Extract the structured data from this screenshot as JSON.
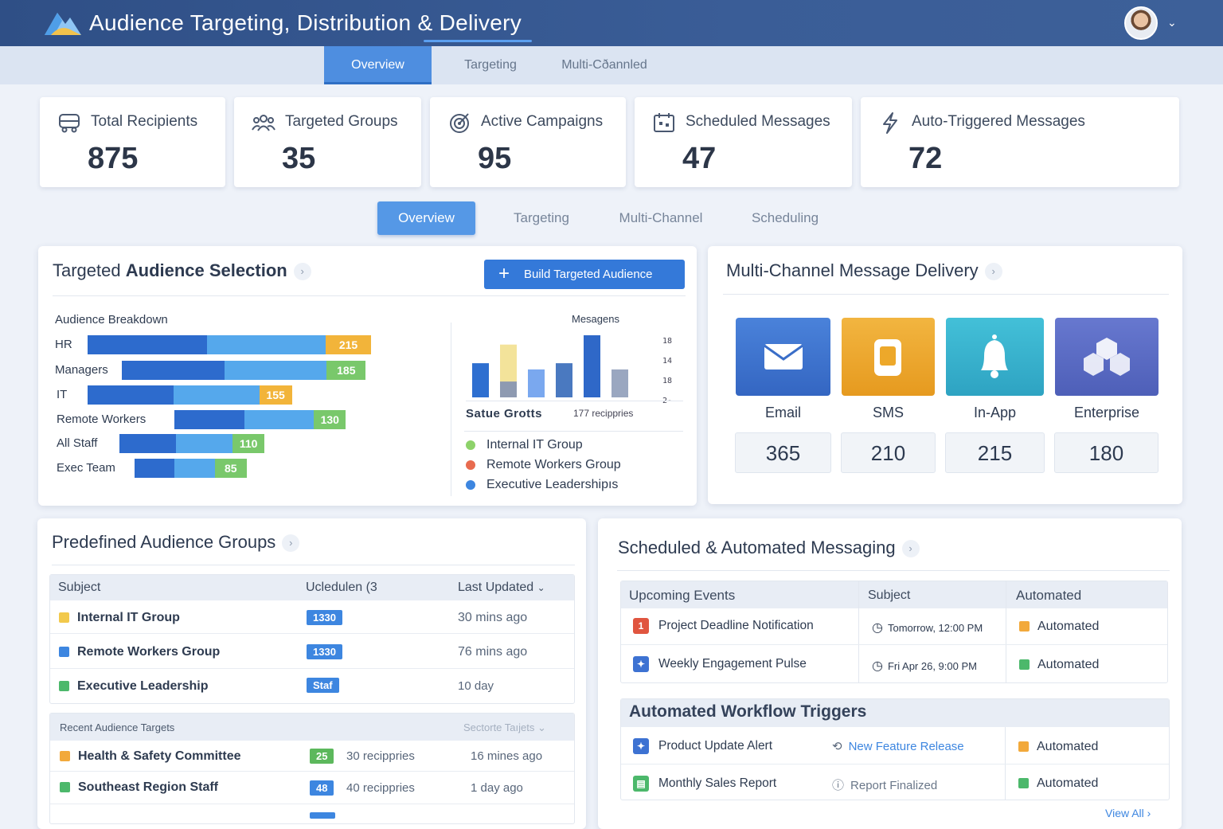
{
  "header": {
    "title": "Audience Targeting, Distribution & Delivery"
  },
  "top_tabs": [
    "Overview",
    "Targeting",
    "Multi-Cðannled"
  ],
  "kpis": [
    {
      "label": "Total Recipients",
      "value": "875",
      "icon": "bus-icon"
    },
    {
      "label": "Targeted Groups",
      "value": "35",
      "icon": "users-icon"
    },
    {
      "label": "Active Campaigns",
      "value": "95",
      "icon": "target-icon"
    },
    {
      "label": "Scheduled Messages",
      "value": "47",
      "icon": "calendar-icon"
    },
    {
      "label": "Auto-Triggered Messages",
      "value": "72",
      "icon": "bolt-icon"
    }
  ],
  "sub_tabs": [
    "Overview",
    "Targeting",
    "Multi-Channel",
    "Scheduling"
  ],
  "targeted": {
    "title_a": "Targeted",
    "title_b": "Audience Selection",
    "build_button": "Build Targeted Audience",
    "breakdown_label": "Audience Breakdown",
    "chart_title": "Mesagens",
    "chart_right_ticks": [
      "18",
      "14",
      "18",
      "2-"
    ],
    "chart_footer_left": "Satue Grotts",
    "chart_footer_right": "177 recippries",
    "legend": [
      {
        "label": "Internal IT Group",
        "color": "#8dd26a"
      },
      {
        "label": "Remote Workers Group",
        "color": "#e86b4f"
      },
      {
        "label": "Executive Leadershipıs",
        "color": "#3d86e0"
      }
    ]
  },
  "chart_data": [
    {
      "type": "bar",
      "title": "Audience Breakdown",
      "categories": [
        "HR",
        "Managers",
        "IT",
        "Remote Workers",
        "All Staff",
        "Exec Team"
      ],
      "values": [
        215,
        185,
        155,
        130,
        110,
        85
      ],
      "tag_colors": [
        "#f2b43a",
        "#79c86b",
        "#f2b43a",
        "#79c86b",
        "#79c86b",
        "#79c86b"
      ]
    },
    {
      "type": "bar",
      "title": "Mesagens",
      "values": [
        0.55,
        0.85,
        0.45,
        0.55,
        1.0,
        0.45
      ],
      "series_colors": [
        "#2e6fd0",
        "#f3e39a",
        "#7aa8ef",
        "#4a79c0",
        "#2f68c8",
        "#9aa7c0"
      ]
    }
  ],
  "delivery": {
    "title": "Multi-Channel Message Delivery",
    "channels": [
      {
        "name": "Email",
        "value": "365",
        "color": "#3d72d2",
        "icon": "mail-icon"
      },
      {
        "name": "SMS",
        "value": "210",
        "color": "#eda82a",
        "icon": "phone-icon"
      },
      {
        "name": "In-App",
        "value": "215",
        "color": "#3ab3cf",
        "icon": "bell-icon"
      },
      {
        "name": "Enterprise",
        "value": "180",
        "color": "#5b6ec6",
        "icon": "cube-icon"
      }
    ]
  },
  "groups": {
    "title": "Predefined Audience Groups",
    "headers": [
      "Subject",
      "Ucledulen (3",
      "Last Updated"
    ],
    "rows": [
      {
        "name": "Internal IT Group",
        "tag": "1330",
        "updated": "30 mins ago",
        "chk": "#f2c94c"
      },
      {
        "name": "Remote Workers Group",
        "tag": "1330",
        "updated": "76 mins ago",
        "chk": "#3d86e0"
      },
      {
        "name": "Executive Leadership",
        "tag": "Staf",
        "updated": "10 day",
        "chk": "#4cb86b"
      }
    ],
    "recent_label": "Recent Audience Targets",
    "recent_select": "Sectorte Taıjets",
    "recent_rows": [
      {
        "name": "Health & Safety Committee",
        "count": "25",
        "recipients": "30 recippries",
        "time": "16 mines ago",
        "chk": "#f2a93b",
        "pill": "#5cb85c"
      },
      {
        "name": "Southeast Region Staff",
        "count": "48",
        "recipients": "40 recippries",
        "time": "1 day ago",
        "chk": "#4cb86b",
        "pill": "#3d86e0"
      }
    ]
  },
  "scheduled": {
    "title": "Scheduled & Automated Messaging",
    "headers": [
      "Upcoming Events",
      "Subject",
      "Automated"
    ],
    "rows": [
      {
        "event": "Project Deadline Notification",
        "when": "Tomorrow, 12:00 PM",
        "status": "Automated",
        "icon_text": "1",
        "icon_color": "#e0553f",
        "status_color": "#f2a93b"
      },
      {
        "event": "Weekly Engagement Pulse",
        "when": "Fri Apr 26, 9:00 PM",
        "status": "Automated",
        "icon_text": "✦",
        "icon_color": "#3d72d2",
        "status_color": "#4cb86b"
      }
    ],
    "workflow_title": "Automated Workflow Triggers",
    "workflow_rows": [
      {
        "name": "Product Update Alert",
        "trigger": "New Feature Release",
        "status": "Automated",
        "icon_color": "#3d72d2",
        "status_color": "#f2a93b",
        "trigger_link": true
      },
      {
        "name": "Monthly Sales Report",
        "trigger": "Report Finalized",
        "status": "Automated",
        "icon_color": "#4cb86b",
        "status_color": "#4cb86b",
        "trigger_link": false
      }
    ],
    "view_all": "View All"
  }
}
